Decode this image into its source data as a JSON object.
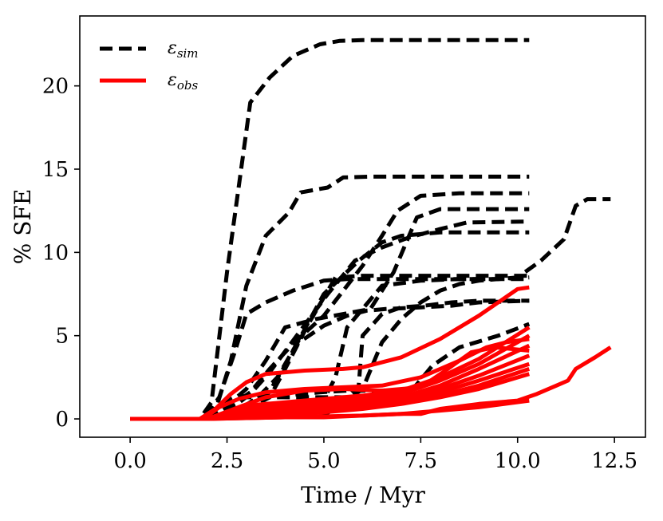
{
  "chart_data": {
    "type": "line",
    "xlabel": "Time / Myr",
    "ylabel": "% SFE",
    "xlim": [
      -1.3,
      13.3
    ],
    "ylim": [
      -1.1,
      24.2
    ],
    "xticks": [
      "0.0",
      "2.5",
      "5.0",
      "7.5",
      "10.0",
      "12.5"
    ],
    "yticks": [
      "0",
      "5",
      "10",
      "15",
      "20"
    ],
    "grid": false,
    "legend_position": "top-left",
    "legend": [
      {
        "symbol": "ε",
        "subscript": "sim",
        "style": "dashed",
        "color": "#000000"
      },
      {
        "symbol": "ε",
        "subscript": "obs",
        "style": "solid",
        "color": "#ff0000"
      }
    ],
    "series": [
      {
        "group": "sim",
        "color": "#000000",
        "x": [
          0,
          1.8,
          2.1,
          2.5,
          3.1,
          3.6,
          4.2,
          4.9,
          5.4,
          6.0,
          7.0,
          8.5,
          10.3
        ],
        "y": [
          0,
          0,
          1.0,
          8.8,
          19.0,
          20.5,
          21.8,
          22.5,
          22.7,
          22.75,
          22.75,
          22.75,
          22.75
        ]
      },
      {
        "group": "sim",
        "color": "#000000",
        "x": [
          0,
          1.8,
          2.2,
          2.6,
          3.0,
          3.5,
          4.1,
          4.4,
          5.1,
          5.5,
          6.2,
          8.0,
          10.3
        ],
        "y": [
          0,
          0,
          0.5,
          3.5,
          8.0,
          11.0,
          12.4,
          13.6,
          13.9,
          14.5,
          14.55,
          14.55,
          14.55
        ]
      },
      {
        "group": "sim",
        "color": "#000000",
        "x": [
          0,
          1.9,
          2.3,
          2.7,
          3.0,
          3.5,
          4.2,
          5.0,
          5.6,
          6.5,
          8.0,
          10.3
        ],
        "y": [
          0,
          0,
          1.3,
          4.0,
          6.3,
          7.0,
          7.7,
          8.3,
          8.4,
          8.4,
          8.4,
          8.4
        ]
      },
      {
        "group": "sim",
        "color": "#000000",
        "x": [
          0,
          1.9,
          2.5,
          3.0,
          3.5,
          4.0,
          4.8,
          5.5,
          6.2,
          6.8,
          7.4,
          8.0,
          10.3
        ],
        "y": [
          0,
          0,
          0.8,
          1.8,
          3.5,
          5.5,
          6.0,
          6.3,
          6.6,
          8.8,
          12.1,
          12.6,
          12.6
        ]
      },
      {
        "group": "sim",
        "color": "#000000",
        "x": [
          0,
          2.0,
          2.6,
          3.1,
          3.6,
          4.2,
          5.0,
          6.0,
          6.5,
          6.9,
          7.5,
          8.5,
          10.3
        ],
        "y": [
          0,
          0,
          0.8,
          1.6,
          3.0,
          4.5,
          6.2,
          9.2,
          11.0,
          12.5,
          13.4,
          13.55,
          13.55
        ]
      },
      {
        "group": "sim",
        "color": "#000000",
        "x": [
          0,
          2.0,
          2.6,
          3.1,
          3.6,
          4.3,
          5.1,
          5.8,
          6.5,
          7.2,
          8.0,
          8.7,
          10.3
        ],
        "y": [
          0,
          0,
          0.6,
          1.5,
          2.8,
          5.0,
          7.5,
          9.5,
          10.3,
          10.9,
          11.4,
          11.8,
          11.85
        ]
      },
      {
        "group": "sim",
        "color": "#000000",
        "x": [
          0,
          2.0,
          2.7,
          3.3,
          3.8,
          4.3,
          5.0,
          5.9,
          6.5,
          7.0,
          7.5,
          8.0,
          10.3
        ],
        "y": [
          0,
          0,
          0.4,
          1.3,
          2.5,
          4.5,
          7.5,
          9.5,
          10.6,
          11.0,
          11.1,
          11.2,
          11.2
        ]
      },
      {
        "group": "sim",
        "color": "#000000",
        "x": [
          0,
          2.0,
          2.8,
          3.6,
          4.0,
          4.6,
          5.3,
          6.0,
          7.0,
          8.0,
          10.3
        ],
        "y": [
          0,
          0,
          0.3,
          1.3,
          3.0,
          5.7,
          8.5,
          8.6,
          8.6,
          8.6,
          8.6
        ]
      },
      {
        "group": "sim",
        "color": "#000000",
        "x": [
          0,
          2.0,
          3.0,
          3.5,
          3.9,
          4.3,
          5.0,
          5.6,
          6.1,
          6.6,
          7.5,
          8.3,
          9.0,
          10.3
        ],
        "y": [
          0,
          0,
          0.6,
          1.3,
          2.8,
          4.5,
          5.6,
          6.2,
          6.5,
          6.6,
          6.7,
          6.8,
          7.0,
          7.1
        ]
      },
      {
        "group": "sim",
        "color": "#000000",
        "x": [
          0,
          1.9,
          2.2,
          2.6,
          3.0,
          4.0,
          4.9,
          5.6,
          6.5,
          7.3,
          7.8,
          8.5,
          9.5,
          10.3
        ],
        "y": [
          0,
          0,
          0.6,
          1.2,
          1.4,
          1.4,
          1.6,
          1.7,
          1.7,
          1.8,
          3.2,
          4.3,
          5.0,
          5.7
        ]
      },
      {
        "group": "sim",
        "color": "#000000",
        "x": [
          0,
          1.9,
          2.3,
          2.6,
          3.0,
          3.6,
          4.2,
          5.0,
          5.6,
          5.9,
          6.0,
          6.5,
          7.0,
          7.6,
          8.3,
          9.0,
          9.6,
          10.3
        ],
        "y": [
          0,
          0,
          0.8,
          1.1,
          1.3,
          1.3,
          1.3,
          1.3,
          1.3,
          2.0,
          5.0,
          6.3,
          6.7,
          6.8,
          7.0,
          7.1,
          7.1,
          7.1
        ]
      },
      {
        "group": "sim",
        "color": "#000000",
        "x": [
          0,
          2.0,
          3.0,
          4.0,
          5.0,
          6.0,
          6.5,
          7.0,
          7.5,
          8.0,
          8.5,
          9.0,
          9.5,
          10.3
        ],
        "y": [
          0,
          0,
          0.1,
          0.1,
          0.2,
          1.8,
          4.6,
          6.0,
          7.0,
          7.7,
          8.1,
          8.3,
          8.4,
          8.5
        ]
      },
      {
        "group": "sim",
        "color": "#000000",
        "x": [
          0,
          1.9,
          2.5,
          3.0,
          4.0,
          4.8,
          5.3,
          5.6,
          6.5,
          7.5,
          8.5,
          9.5,
          10.0,
          10.6,
          11.2,
          11.5,
          11.8,
          12.4
        ],
        "y": [
          0,
          0,
          0.2,
          0.2,
          0.2,
          0.3,
          2.5,
          5.5,
          8.0,
          8.3,
          8.4,
          8.4,
          8.5,
          9.5,
          10.8,
          12.8,
          13.2,
          13.2
        ]
      },
      {
        "group": "obs",
        "color": "#ff0000",
        "x": [
          0,
          1.8,
          2.2,
          2.6,
          3.0,
          3.5,
          4.5,
          5.5,
          6.0,
          7.0,
          8.0,
          9.0,
          9.5,
          10.0,
          10.3
        ],
        "y": [
          0,
          0,
          0.6,
          1.5,
          2.2,
          2.7,
          2.9,
          3.0,
          3.1,
          3.7,
          4.8,
          6.2,
          7.0,
          7.8,
          7.9
        ]
      },
      {
        "group": "obs",
        "color": "#ff0000",
        "x": [
          0,
          1.9,
          2.3,
          2.8,
          3.5,
          4.5,
          5.5,
          6.5,
          7.5,
          8.5,
          9.2,
          9.7,
          10.3
        ],
        "y": [
          0,
          0,
          0.7,
          1.2,
          1.6,
          1.8,
          1.9,
          2.0,
          2.5,
          3.5,
          4.3,
          4.6,
          4.8
        ]
      },
      {
        "group": "obs",
        "color": "#ff0000",
        "x": [
          0,
          2.0,
          2.8,
          3.5,
          4.5,
          5.5,
          6.5,
          7.5,
          8.2,
          8.8,
          9.4,
          10.3
        ],
        "y": [
          0,
          0,
          0.7,
          1.3,
          1.7,
          1.8,
          1.7,
          1.9,
          3.0,
          4.0,
          4.3,
          4.1
        ]
      },
      {
        "group": "obs",
        "color": "#ff0000",
        "x": [
          0,
          2.0,
          3.0,
          4.0,
          5.0,
          6.0,
          7.0,
          8.0,
          9.0,
          10.3
        ],
        "y": [
          0,
          0,
          0.8,
          1.0,
          1.2,
          1.4,
          1.7,
          2.5,
          3.6,
          5.5
        ]
      },
      {
        "group": "obs",
        "color": "#ff0000",
        "x": [
          0,
          2.0,
          3.0,
          4.0,
          5.0,
          6.0,
          7.0,
          8.0,
          9.0,
          10.3
        ],
        "y": [
          0,
          0,
          0.6,
          0.8,
          1.0,
          1.2,
          1.5,
          2.3,
          3.3,
          5.0
        ]
      },
      {
        "group": "obs",
        "color": "#ff0000",
        "x": [
          0,
          2.0,
          3.0,
          4.0,
          5.0,
          6.0,
          7.0,
          8.0,
          9.0,
          10.3
        ],
        "y": [
          0,
          0,
          0.4,
          0.6,
          0.8,
          1.0,
          1.3,
          2.0,
          3.0,
          4.4
        ]
      },
      {
        "group": "obs",
        "color": "#ff0000",
        "x": [
          0,
          2.0,
          3.0,
          4.0,
          5.0,
          6.0,
          7.0,
          8.0,
          9.0,
          10.3
        ],
        "y": [
          0,
          0,
          0.3,
          0.5,
          0.7,
          0.9,
          1.2,
          1.8,
          2.6,
          3.8
        ]
      },
      {
        "group": "obs",
        "color": "#ff0000",
        "x": [
          0,
          2.0,
          3.0,
          4.0,
          5.0,
          6.0,
          7.0,
          8.0,
          9.0,
          10.3
        ],
        "y": [
          0,
          0,
          0.2,
          0.4,
          0.6,
          0.8,
          1.1,
          1.6,
          2.3,
          3.3
        ]
      },
      {
        "group": "obs",
        "color": "#ff0000",
        "x": [
          0,
          2.0,
          3.0,
          4.0,
          5.0,
          6.0,
          7.0,
          8.0,
          9.0,
          10.3
        ],
        "y": [
          0,
          0,
          0.2,
          0.3,
          0.5,
          0.7,
          1.0,
          1.4,
          2.0,
          3.0
        ]
      },
      {
        "group": "obs",
        "color": "#ff0000",
        "x": [
          0,
          2.0,
          3.0,
          4.0,
          5.0,
          6.0,
          7.0,
          8.0,
          9.0,
          10.3
        ],
        "y": [
          0,
          0,
          0.1,
          0.2,
          0.4,
          0.6,
          0.9,
          1.3,
          1.8,
          2.7
        ]
      },
      {
        "group": "obs",
        "color": "#ff0000",
        "x": [
          0,
          2.0,
          3.0,
          4.0,
          5.0,
          6.0,
          7.0,
          8.0,
          9.0,
          10.3
        ],
        "y": [
          0,
          0,
          0.05,
          0.1,
          0.15,
          0.2,
          0.3,
          0.5,
          0.7,
          1.1
        ]
      },
      {
        "group": "obs",
        "color": "#ff0000",
        "x": [
          0,
          2.0,
          3.0,
          4.0,
          5.0,
          6.0,
          7.0,
          7.5,
          8.0,
          9.0,
          10.0,
          10.5,
          11.0,
          11.3,
          11.5,
          12.0,
          12.4
        ],
        "y": [
          0,
          0,
          0.05,
          0.1,
          0.1,
          0.2,
          0.3,
          0.3,
          0.6,
          0.9,
          1.1,
          1.5,
          2.0,
          2.3,
          3.0,
          3.7,
          4.3
        ]
      }
    ]
  }
}
